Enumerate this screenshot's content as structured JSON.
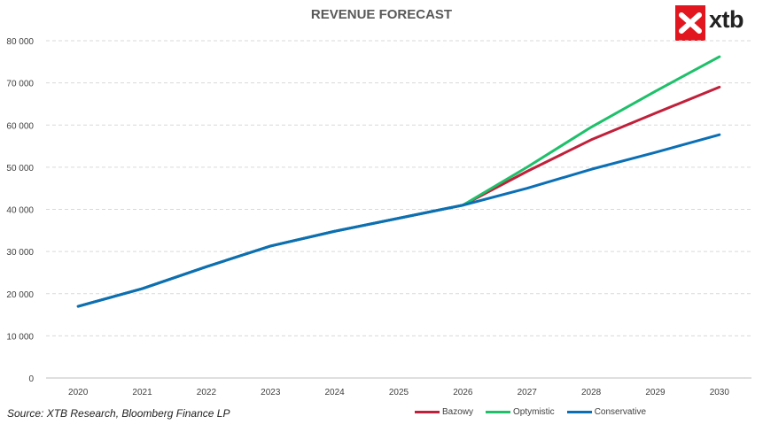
{
  "chart_data": {
    "type": "line",
    "title": "REVENUE FORECAST",
    "source": "Source: XTB Research, Bloomberg Finance LP",
    "x": [
      "2020",
      "2021",
      "2022",
      "2023",
      "2024",
      "2025",
      "2026",
      "2027",
      "2028",
      "2029",
      "2030"
    ],
    "ylim": [
      0,
      80000
    ],
    "yticks": [
      0,
      10000,
      20000,
      30000,
      40000,
      50000,
      60000,
      70000,
      80000
    ],
    "ytick_labels": [
      "0",
      "10 000",
      "20 000",
      "30 000",
      "40 000",
      "50 000",
      "60 000",
      "70 000",
      "80 000"
    ],
    "grid": true,
    "legend_position": "bottom-right",
    "series": [
      {
        "name": "Bazowy",
        "color": "#c0203a",
        "values": [
          17000,
          21200,
          26400,
          31300,
          34800,
          37900,
          41000,
          49000,
          56500,
          62800,
          69000
        ]
      },
      {
        "name": "Optymistic",
        "color": "#1ec06a",
        "values": [
          17000,
          21200,
          26400,
          31300,
          34800,
          37900,
          41000,
          50000,
          59500,
          68000,
          76200
        ]
      },
      {
        "name": "Conservative",
        "color": "#0b6fb5",
        "values": [
          17000,
          21200,
          26400,
          31300,
          34800,
          37900,
          41000,
          45000,
          49500,
          53500,
          57700
        ]
      }
    ]
  },
  "logo": {
    "text": "xtb",
    "color": "#e1161e"
  }
}
